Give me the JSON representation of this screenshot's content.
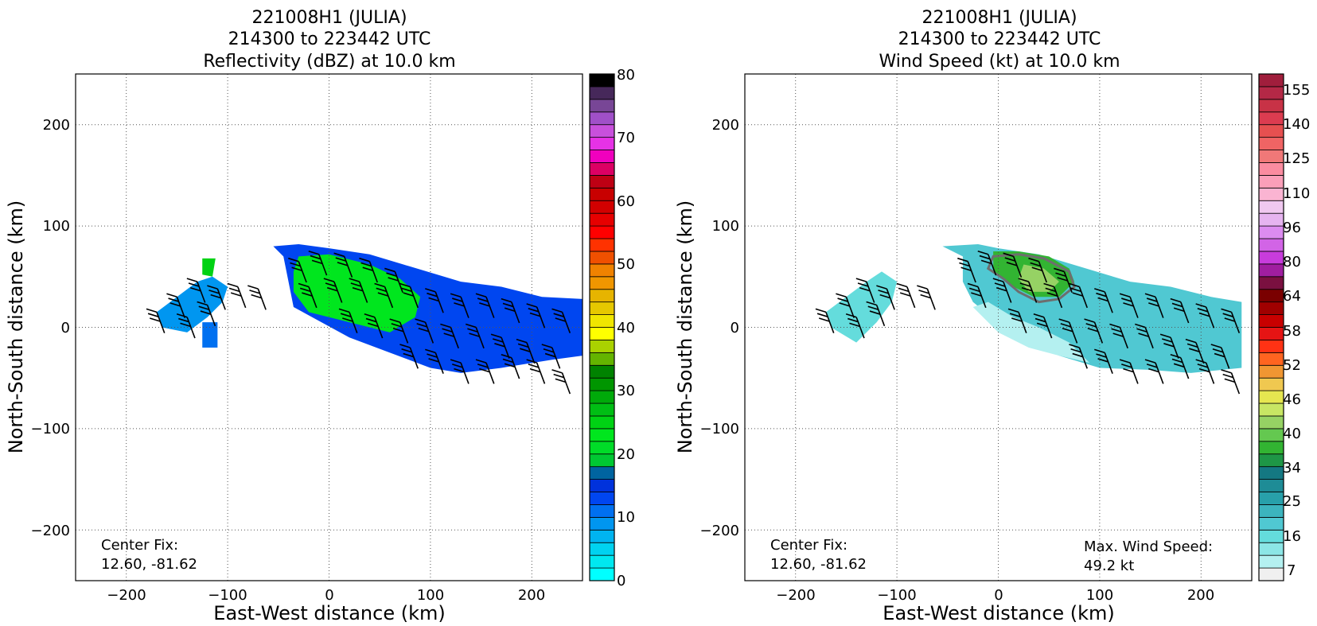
{
  "charts": [
    {
      "id": "reflectivity",
      "title_lines": [
        "221008H1 (JULIA)",
        "214300 to 223442 UTC",
        "Reflectivity (dBZ) at 10.0 km"
      ],
      "xlabel": "East-West distance (km)",
      "ylabel": "North-South distance (km)",
      "xticks": [
        "−200",
        "−100",
        "0",
        "100",
        "200"
      ],
      "yticks": [
        "200",
        "100",
        "0",
        "−100",
        "−200"
      ],
      "annotation_lines": [
        "Center Fix:",
        "12.60, -81.62"
      ],
      "colorbar_labels": [
        "0",
        "10",
        "20",
        "30",
        "40",
        "50",
        "60",
        "70",
        "80"
      ]
    },
    {
      "id": "wind",
      "title_lines": [
        "221008H1 (JULIA)",
        "214300 to 223442 UTC",
        "Wind Speed (kt) at 10.0 km"
      ],
      "xlabel": "East-West distance (km)",
      "ylabel": "North-South distance (km)",
      "xticks": [
        "−200",
        "−100",
        "0",
        "100",
        "200"
      ],
      "yticks": [
        "200",
        "100",
        "0",
        "−100",
        "−200"
      ],
      "annotation_lines": [
        "Center Fix:",
        "12.60, -81.62"
      ],
      "annotation2_lines": [
        "Max. Wind Speed:",
        "49.2 kt"
      ],
      "colorbar_labels": [
        "7",
        "16",
        "25",
        "34",
        "40",
        "46",
        "52",
        "58",
        "64",
        "80",
        "96",
        "110",
        "125",
        "140",
        "155"
      ]
    }
  ],
  "chart_data": [
    {
      "type": "heatmap",
      "title": "221008H1 (JULIA) 214300 to 223442 UTC Reflectivity (dBZ) at 10.0 km",
      "xlabel": "East-West distance (km)",
      "ylabel": "North-South distance (km)",
      "xlim": [
        -250,
        250
      ],
      "ylim": [
        -250,
        250
      ],
      "grid": true,
      "colorbar": {
        "label_values": [
          0,
          10,
          20,
          30,
          40,
          50,
          60,
          70,
          80
        ],
        "colors": [
          "#00ffff",
          "#00e8f0",
          "#00d2f0",
          "#00b4f0",
          "#0096f0",
          "#0070f0",
          "#0046f0",
          "#0032dc",
          "#0064a0",
          "#00c832",
          "#00dc28",
          "#00e61e",
          "#00d214",
          "#00be14",
          "#00aa0a",
          "#009600",
          "#008200",
          "#64b400",
          "#aad200",
          "#ffff00",
          "#f0e600",
          "#e6c800",
          "#e6b400",
          "#f09600",
          "#f08200",
          "#f05000",
          "#ff3200",
          "#ff0000",
          "#e60000",
          "#d20000",
          "#c80000",
          "#be0014",
          "#dc0064",
          "#f000be",
          "#e632e6",
          "#c850dc",
          "#a050c8",
          "#784696",
          "#46285a",
          "#000000"
        ]
      },
      "echo_regions": [
        {
          "level_dBZ": 12,
          "points": [
            [
              -55,
              80
            ],
            [
              -30,
              82
            ],
            [
              0,
              78
            ],
            [
              40,
              72
            ],
            [
              80,
              60
            ],
            [
              130,
              45
            ],
            [
              170,
              40
            ],
            [
              210,
              30
            ],
            [
              250,
              28
            ],
            [
              250,
              -28
            ],
            [
              220,
              -32
            ],
            [
              170,
              -40
            ],
            [
              130,
              -45
            ],
            [
              100,
              -40
            ],
            [
              60,
              -25
            ],
            [
              20,
              -10
            ],
            [
              -35,
              20
            ],
            [
              -40,
              45
            ],
            [
              -45,
              70
            ]
          ]
        },
        {
          "level_dBZ": 22,
          "points": [
            [
              -30,
              70
            ],
            [
              0,
              72
            ],
            [
              40,
              62
            ],
            [
              70,
              48
            ],
            [
              90,
              30
            ],
            [
              85,
              10
            ],
            [
              60,
              -5
            ],
            [
              20,
              5
            ],
            [
              -20,
              15
            ],
            [
              -35,
              35
            ],
            [
              -35,
              55
            ]
          ]
        },
        {
          "level_dBZ": 8,
          "points": [
            [
              -170,
              15
            ],
            [
              -150,
              30
            ],
            [
              -130,
              45
            ],
            [
              -115,
              50
            ],
            [
              -100,
              40
            ],
            [
              -105,
              25
            ],
            [
              -120,
              10
            ],
            [
              -140,
              -5
            ],
            [
              -165,
              0
            ]
          ]
        },
        {
          "level_dBZ": 25,
          "points": [
            [
              -125,
              68
            ],
            [
              -112,
              68
            ],
            [
              -115,
              50
            ],
            [
              -125,
              52
            ]
          ]
        },
        {
          "level_dBZ": 10,
          "points": [
            [
              -125,
              5
            ],
            [
              -110,
              5
            ],
            [
              -110,
              -20
            ],
            [
              -125,
              -20
            ]
          ]
        }
      ],
      "wind_barbs": [
        {
          "x": -170,
          "y": 15
        },
        {
          "x": -150,
          "y": 30
        },
        {
          "x": -130,
          "y": 45
        },
        {
          "x": -110,
          "y": 38
        },
        {
          "x": -90,
          "y": 40
        },
        {
          "x": -70,
          "y": 38
        },
        {
          "x": -140,
          "y": 10
        },
        {
          "x": -120,
          "y": 22
        },
        {
          "x": -30,
          "y": 65
        },
        {
          "x": -10,
          "y": 72
        },
        {
          "x": 15,
          "y": 70
        },
        {
          "x": 40,
          "y": 65
        },
        {
          "x": 65,
          "y": 55
        },
        {
          "x": -20,
          "y": 40
        },
        {
          "x": 5,
          "y": 45
        },
        {
          "x": 30,
          "y": 45
        },
        {
          "x": 55,
          "y": 40
        },
        {
          "x": 80,
          "y": 40
        },
        {
          "x": 105,
          "y": 35
        },
        {
          "x": 130,
          "y": 30
        },
        {
          "x": 155,
          "y": 30
        },
        {
          "x": 180,
          "y": 25
        },
        {
          "x": 205,
          "y": 20
        },
        {
          "x": 230,
          "y": 15
        },
        {
          "x": 20,
          "y": 15
        },
        {
          "x": 45,
          "y": 10
        },
        {
          "x": 70,
          "y": 5
        },
        {
          "x": 95,
          "y": 5
        },
        {
          "x": 120,
          "y": 0
        },
        {
          "x": 145,
          "y": 0
        },
        {
          "x": 170,
          "y": -10
        },
        {
          "x": 195,
          "y": -15
        },
        {
          "x": 220,
          "y": -20
        },
        {
          "x": 80,
          "y": -20
        },
        {
          "x": 105,
          "y": -25
        },
        {
          "x": 130,
          "y": -35
        },
        {
          "x": 155,
          "y": -35
        },
        {
          "x": 180,
          "y": -30
        },
        {
          "x": 205,
          "y": -35
        },
        {
          "x": 230,
          "y": -45
        }
      ]
    },
    {
      "type": "heatmap",
      "title": "221008H1 (JULIA) 214300 to 223442 UTC Wind Speed (kt) at 10.0 km",
      "xlabel": "East-West distance (km)",
      "ylabel": "North-South distance (km)",
      "xlim": [
        -250,
        250
      ],
      "ylim": [
        -250,
        250
      ],
      "grid": true,
      "max_wind_speed_kt": 49.2,
      "colorbar": {
        "label_values": [
          7,
          16,
          25,
          34,
          40,
          46,
          52,
          58,
          64,
          80,
          96,
          110,
          125,
          140,
          155
        ],
        "colors": [
          "#f0f0f0",
          "#b4f0f0",
          "#8ce6e6",
          "#64dcdc",
          "#50c8d2",
          "#3cb4be",
          "#28a0aa",
          "#1e8c96",
          "#147882",
          "#1e9646",
          "#32b432",
          "#64c850",
          "#96d264",
          "#c8e664",
          "#e6e650",
          "#f0c850",
          "#f09632",
          "#ff6420",
          "#ff3214",
          "#e61414",
          "#c80000",
          "#a00000",
          "#7a0000",
          "#7a1040",
          "#a01ea0",
          "#c83cdc",
          "#d264e6",
          "#dc8cf0",
          "#e6b4f0",
          "#f0c8f0",
          "#fab4d2",
          "#fa9fb9",
          "#fa8ca0",
          "#f07878",
          "#f06464",
          "#e65050",
          "#dc3c50",
          "#c83246",
          "#b42846",
          "#a01e3c"
        ]
      },
      "speed_regions": [
        {
          "speed_kt": 22,
          "points": [
            [
              -55,
              80
            ],
            [
              -20,
              82
            ],
            [
              0,
              78
            ],
            [
              40,
              72
            ],
            [
              80,
              60
            ],
            [
              130,
              45
            ],
            [
              170,
              40
            ],
            [
              210,
              30
            ],
            [
              240,
              25
            ],
            [
              240,
              -40
            ],
            [
              190,
              -45
            ],
            [
              150,
              -42
            ],
            [
              100,
              -40
            ],
            [
              60,
              -28
            ],
            [
              20,
              -12
            ],
            [
              -25,
              25
            ],
            [
              -35,
              45
            ],
            [
              -35,
              70
            ]
          ]
        },
        {
          "speed_kt": 12,
          "points": [
            [
              -25,
              20
            ],
            [
              0,
              -5
            ],
            [
              30,
              -20
            ],
            [
              60,
              -28
            ],
            [
              90,
              -35
            ],
            [
              70,
              -15
            ],
            [
              40,
              0
            ],
            [
              15,
              10
            ],
            [
              -10,
              25
            ]
          ]
        },
        {
          "speed_kt": 40,
          "points": [
            [
              -5,
              75
            ],
            [
              20,
              75
            ],
            [
              50,
              70
            ],
            [
              70,
              58
            ],
            [
              75,
              45
            ],
            [
              60,
              30
            ],
            [
              35,
              30
            ],
            [
              15,
              40
            ],
            [
              -5,
              55
            ]
          ]
        },
        {
          "speed_kt": 44,
          "points": [
            [
              25,
              62
            ],
            [
              45,
              58
            ],
            [
              60,
              45
            ],
            [
              50,
              35
            ],
            [
              30,
              35
            ],
            [
              20,
              48
            ]
          ]
        },
        {
          "speed_kt": 20,
          "points": [
            [
              -170,
              15
            ],
            [
              -150,
              30
            ],
            [
              -130,
              45
            ],
            [
              -115,
              55
            ],
            [
              -100,
              45
            ],
            [
              -105,
              25
            ],
            [
              -120,
              5
            ],
            [
              -140,
              -15
            ],
            [
              -165,
              0
            ]
          ]
        }
      ],
      "contour_34kt": [
        [
          -5,
          70
        ],
        [
          20,
          72
        ],
        [
          45,
          68
        ],
        [
          70,
          55
        ],
        [
          75,
          40
        ],
        [
          60,
          28
        ],
        [
          40,
          25
        ],
        [
          20,
          35
        ],
        [
          5,
          48
        ],
        [
          -10,
          58
        ]
      ],
      "wind_barbs": [
        {
          "x": -170,
          "y": 15
        },
        {
          "x": -150,
          "y": 30
        },
        {
          "x": -130,
          "y": 45
        },
        {
          "x": -110,
          "y": 38
        },
        {
          "x": -90,
          "y": 40
        },
        {
          "x": -70,
          "y": 38
        },
        {
          "x": -140,
          "y": 10
        },
        {
          "x": -120,
          "y": 22
        },
        {
          "x": -30,
          "y": 65
        },
        {
          "x": -10,
          "y": 72
        },
        {
          "x": 15,
          "y": 70
        },
        {
          "x": 40,
          "y": 65
        },
        {
          "x": 65,
          "y": 55
        },
        {
          "x": -20,
          "y": 40
        },
        {
          "x": 5,
          "y": 45
        },
        {
          "x": 30,
          "y": 45
        },
        {
          "x": 55,
          "y": 40
        },
        {
          "x": 80,
          "y": 40
        },
        {
          "x": 105,
          "y": 35
        },
        {
          "x": 130,
          "y": 30
        },
        {
          "x": 155,
          "y": 30
        },
        {
          "x": 180,
          "y": 25
        },
        {
          "x": 205,
          "y": 20
        },
        {
          "x": 230,
          "y": 15
        },
        {
          "x": 20,
          "y": 15
        },
        {
          "x": 45,
          "y": 10
        },
        {
          "x": 70,
          "y": 5
        },
        {
          "x": 95,
          "y": 5
        },
        {
          "x": 120,
          "y": 0
        },
        {
          "x": 145,
          "y": 0
        },
        {
          "x": 170,
          "y": -10
        },
        {
          "x": 195,
          "y": -15
        },
        {
          "x": 220,
          "y": -20
        },
        {
          "x": 80,
          "y": -20
        },
        {
          "x": 105,
          "y": -25
        },
        {
          "x": 130,
          "y": -35
        },
        {
          "x": 155,
          "y": -35
        },
        {
          "x": 180,
          "y": -30
        },
        {
          "x": 205,
          "y": -35
        },
        {
          "x": 230,
          "y": -45
        }
      ]
    }
  ]
}
